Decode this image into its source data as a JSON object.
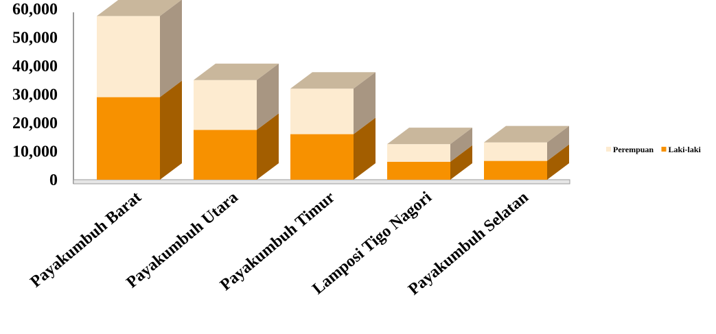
{
  "chart_data": {
    "type": "bar",
    "stacked": true,
    "three_d": true,
    "categories": [
      "Payakumbuh Barat",
      "Payakumbuh Utara",
      "Payakumbuh Timur",
      "Lamposi Tigo Nagori",
      "Payakumbuh Selatan"
    ],
    "series": [
      {
        "name": "Laki-laki",
        "values": [
          29000,
          17500,
          16000,
          6300,
          6600
        ],
        "color": "#F79100",
        "side_color": "#A35E00",
        "top_color": "#C9B79C"
      },
      {
        "name": "Perempuan",
        "values": [
          28500,
          17500,
          16000,
          6200,
          6500
        ],
        "color": "#FDEBD0",
        "side_color": "#A89682",
        "top_color": "#C9B79C"
      }
    ],
    "y_ticks": [
      "0",
      "10,000",
      "20,000",
      "30,000",
      "40,000",
      "50,000",
      "60,000"
    ],
    "ylim": [
      0,
      60000
    ],
    "legend": {
      "placement": "right",
      "entries": [
        "Perempuan",
        "Laki-laki"
      ]
    },
    "grid": false
  }
}
